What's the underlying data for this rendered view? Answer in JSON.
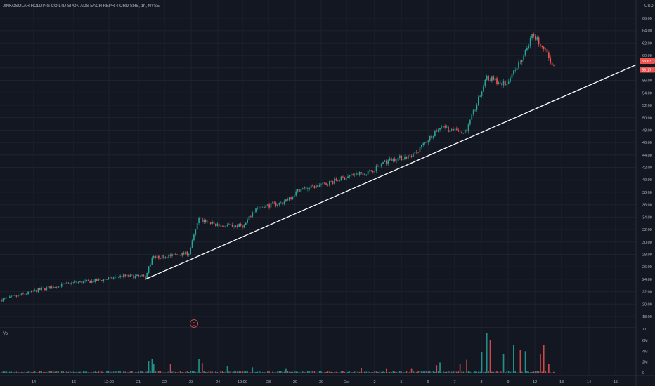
{
  "symbol_title": "JINKOSOLAR HOLDING CO LTD SPON ADS EACH REPR 4 ORD SHS, 1h, NYSE",
  "currency": "USD",
  "volume_label": "Vol",
  "volume_unit": "nn",
  "earnings_marker": "E",
  "colors": {
    "background": "#131722",
    "grid": "#1e222d",
    "up": "#26a69a",
    "down": "#ef5350",
    "axis_text": "#b2b5be",
    "trendline": "#ffffff",
    "price_label": "#ef5350"
  },
  "chart_data": {
    "type": "candlestick",
    "interval": "1h",
    "price_axis": {
      "min": 18,
      "max": 66,
      "ticks": [
        "18.00",
        "20.00",
        "22.00",
        "24.00",
        "26.00",
        "28.00",
        "30.00",
        "32.00",
        "34.00",
        "36.00",
        "38.00",
        "40.00",
        "42.00",
        "44.00",
        "46.00",
        "48.00",
        "50.00",
        "52.00",
        "54.00",
        "56.00",
        "58.00",
        "60.00",
        "62.00",
        "64.00",
        "66.00"
      ]
    },
    "volume_axis": {
      "min": 0,
      "max": 8,
      "ticks": [
        "0",
        "2M",
        "4M",
        "6M"
      ]
    },
    "time_axis": {
      "ticks": [
        "14",
        "16",
        "12:00",
        "21",
        "22",
        "23",
        "24",
        "19:00",
        "28",
        "29",
        "30",
        "Oct",
        "2",
        "5",
        "6",
        "7",
        "8",
        "9",
        "12",
        "13",
        "14",
        "15"
      ]
    },
    "price_labels": [
      {
        "value": "58.63",
        "price": 58.63
      },
      {
        "value": "58.17",
        "price": 58.17
      }
    ],
    "trendline": {
      "from_price": 24.0,
      "to_price": 58.5
    },
    "ohlc_anchors": [
      {
        "i": 0,
        "close": 20.7
      },
      {
        "i": 10,
        "close": 21.3
      },
      {
        "i": 24,
        "close": 22.4
      },
      {
        "i": 42,
        "close": 23.4
      },
      {
        "i": 58,
        "close": 23.8
      },
      {
        "i": 72,
        "close": 24.5
      },
      {
        "i": 86,
        "close": 24.4
      },
      {
        "i": 90,
        "close": 27.4
      },
      {
        "i": 112,
        "close": 28.2
      },
      {
        "i": 118,
        "close": 33.7
      },
      {
        "i": 130,
        "close": 32.6
      },
      {
        "i": 145,
        "close": 32.6
      },
      {
        "i": 152,
        "close": 35.5
      },
      {
        "i": 168,
        "close": 36.3
      },
      {
        "i": 178,
        "close": 38.4
      },
      {
        "i": 192,
        "close": 39.2
      },
      {
        "i": 210,
        "close": 40.8
      },
      {
        "i": 220,
        "close": 41.3
      },
      {
        "i": 232,
        "close": 43.2
      },
      {
        "i": 246,
        "close": 43.9
      },
      {
        "i": 262,
        "close": 48.6
      },
      {
        "i": 270,
        "close": 47.8
      },
      {
        "i": 278,
        "close": 47.9
      },
      {
        "i": 290,
        "close": 56.5
      },
      {
        "i": 302,
        "close": 55.2
      },
      {
        "i": 318,
        "close": 63.4
      },
      {
        "i": 330,
        "close": 58.5
      }
    ],
    "bar_count": 331,
    "volume_spikes": [
      {
        "i": 88,
        "value": 2.2
      },
      {
        "i": 90,
        "value": 2.6
      },
      {
        "i": 91,
        "value": 1.6
      },
      {
        "i": 101,
        "value": 1.6
      },
      {
        "i": 118,
        "value": 2.5
      },
      {
        "i": 120,
        "value": 1.8
      },
      {
        "i": 135,
        "value": 1.2
      },
      {
        "i": 150,
        "value": 1.0
      },
      {
        "i": 170,
        "value": 0.7
      },
      {
        "i": 215,
        "value": 0.8
      },
      {
        "i": 230,
        "value": 0.7
      },
      {
        "i": 245,
        "value": 0.7
      },
      {
        "i": 260,
        "value": 1.4
      },
      {
        "i": 262,
        "value": 1.9
      },
      {
        "i": 274,
        "value": 1.6
      },
      {
        "i": 278,
        "value": 2.4
      },
      {
        "i": 287,
        "value": 3.8
      },
      {
        "i": 290,
        "value": 7.4
      },
      {
        "i": 292,
        "value": 6.0
      },
      {
        "i": 300,
        "value": 3.5
      },
      {
        "i": 306,
        "value": 5.2
      },
      {
        "i": 310,
        "value": 4.3
      },
      {
        "i": 313,
        "value": 4.0
      },
      {
        "i": 322,
        "value": 3.4
      },
      {
        "i": 324,
        "value": 5.1
      },
      {
        "i": 327,
        "value": 1.6
      }
    ]
  }
}
